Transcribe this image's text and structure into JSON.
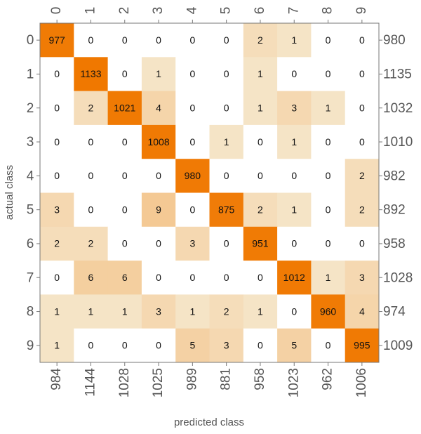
{
  "chart_data": {
    "type": "heatmap",
    "x_label": "predicted class",
    "y_label": "actual class",
    "rows": [
      "0",
      "1",
      "2",
      "3",
      "4",
      "5",
      "6",
      "7",
      "8",
      "9"
    ],
    "columns": [
      "0",
      "1",
      "2",
      "3",
      "4",
      "5",
      "6",
      "7",
      "8",
      "9"
    ],
    "values": [
      [
        977,
        0,
        0,
        0,
        0,
        0,
        2,
        1,
        0,
        0
      ],
      [
        0,
        1133,
        0,
        1,
        0,
        0,
        1,
        0,
        0,
        0
      ],
      [
        0,
        2,
        1021,
        4,
        0,
        0,
        1,
        3,
        1,
        0
      ],
      [
        0,
        0,
        0,
        1008,
        0,
        1,
        0,
        1,
        0,
        0
      ],
      [
        0,
        0,
        0,
        0,
        980,
        0,
        0,
        0,
        0,
        2
      ],
      [
        3,
        0,
        0,
        9,
        0,
        875,
        2,
        1,
        0,
        2
      ],
      [
        2,
        2,
        0,
        0,
        3,
        0,
        951,
        0,
        0,
        0
      ],
      [
        0,
        6,
        6,
        0,
        0,
        0,
        0,
        1012,
        1,
        3
      ],
      [
        1,
        1,
        1,
        3,
        1,
        2,
        1,
        0,
        960,
        4
      ],
      [
        1,
        0,
        0,
        0,
        5,
        3,
        0,
        5,
        0,
        995
      ]
    ],
    "row_totals": [
      980,
      1135,
      1032,
      1010,
      982,
      892,
      958,
      1028,
      974,
      1009
    ],
    "column_totals": [
      984,
      1144,
      1028,
      1025,
      989,
      881,
      958,
      1023,
      962,
      1006
    ],
    "colorscale": [
      "#f6f0dc",
      "#f07800"
    ]
  }
}
